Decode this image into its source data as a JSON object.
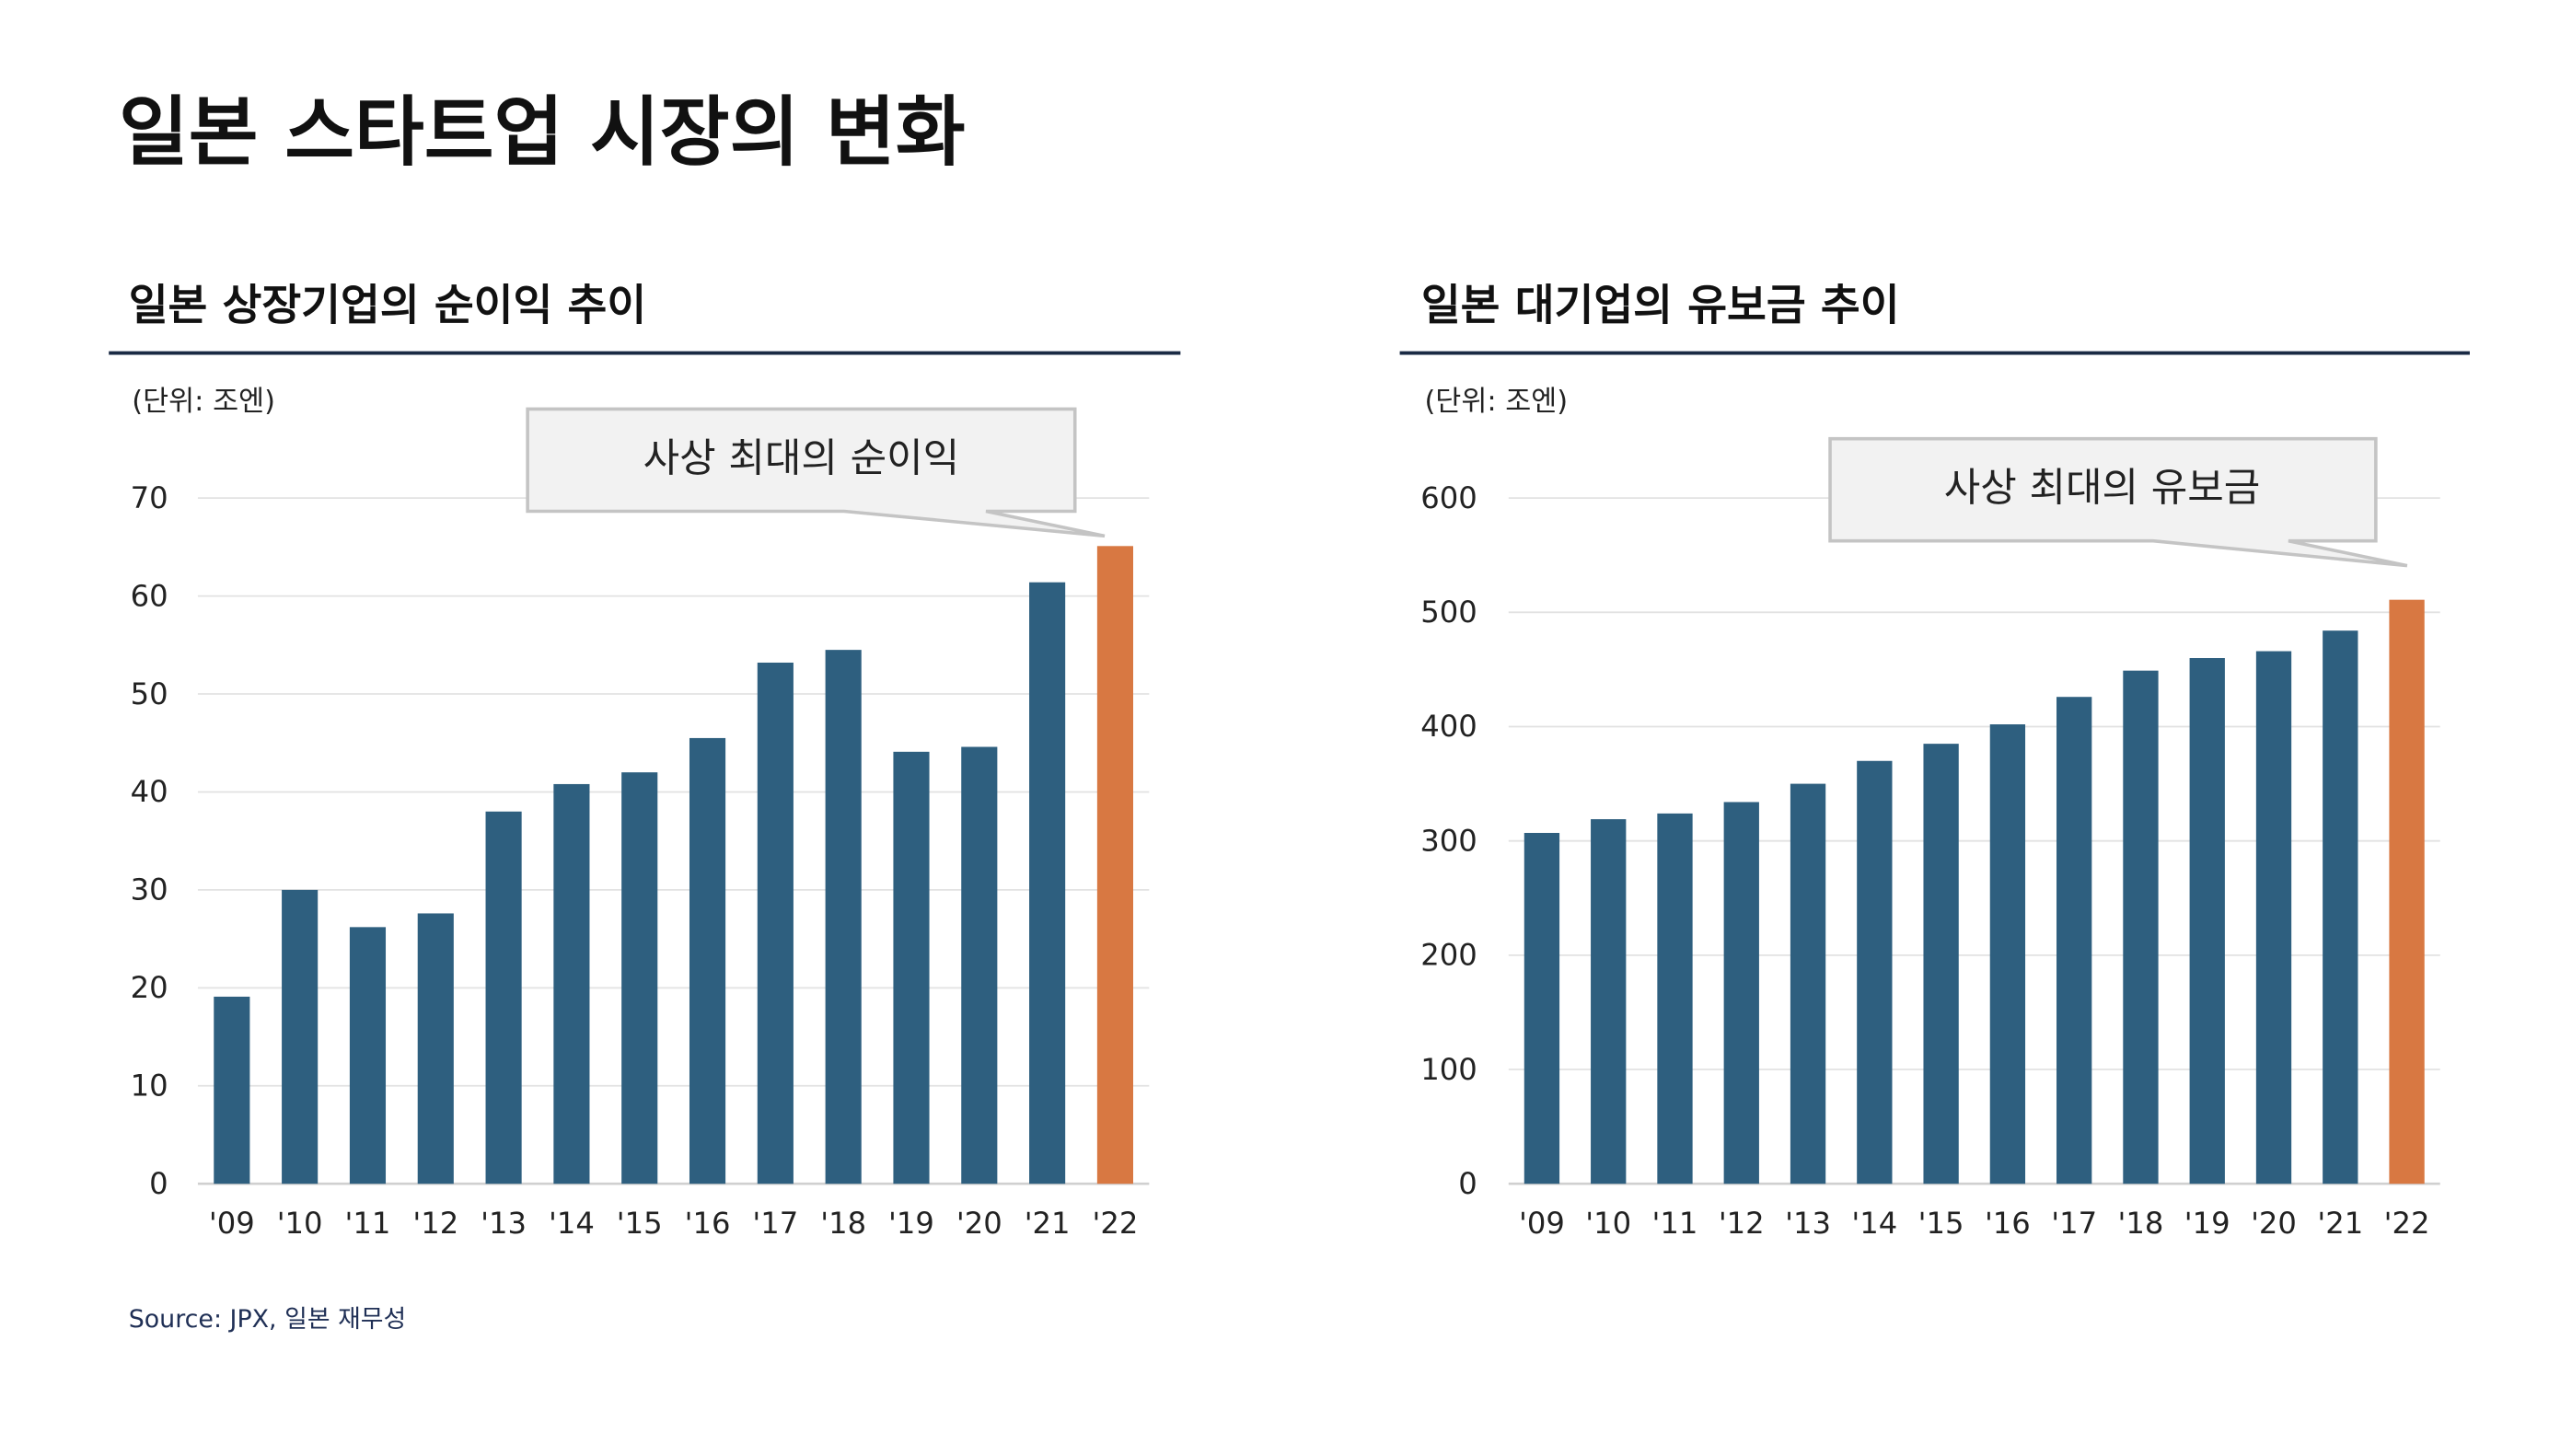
{
  "title": "일본 스타트업 시장의 변화",
  "source": "Source: JPX, 일본 재무성",
  "colors": {
    "bar": "#2e5f7f",
    "highlight": "#d87842",
    "rule": "#1a2a44",
    "grid": "#e2e2e2"
  },
  "chart_data": [
    {
      "type": "bar",
      "title": "일본 상장기업의 순이익 추이",
      "unit": "(단위: 조엔)",
      "annotation": "사상 최대의 순이익",
      "categories": [
        "'09",
        "'10",
        "'11",
        "'12",
        "'13",
        "'14",
        "'15",
        "'16",
        "'17",
        "'18",
        "'19",
        "'20",
        "'21",
        "'22"
      ],
      "values": [
        19.1,
        30.0,
        26.2,
        27.6,
        38.0,
        40.8,
        42.0,
        45.5,
        53.2,
        54.5,
        44.1,
        44.6,
        61.4,
        65.1
      ],
      "highlight_index": 13,
      "ylim": [
        0,
        70
      ],
      "yticks": [
        0,
        10,
        20,
        30,
        40,
        50,
        60,
        70
      ],
      "grid": true
    },
    {
      "type": "bar",
      "title": "일본 대기업의 유보금 추이",
      "unit": "(단위: 조엔)",
      "annotation": "사상 최대의 유보금",
      "categories": [
        "'09",
        "'10",
        "'11",
        "'12",
        "'13",
        "'14",
        "'15",
        "'16",
        "'17",
        "'18",
        "'19",
        "'20",
        "'21",
        "'22"
      ],
      "values": [
        307,
        319,
        324,
        334,
        350,
        370,
        385,
        402,
        426,
        449,
        460,
        466,
        484,
        511
      ],
      "highlight_index": 13,
      "ylim": [
        0,
        600
      ],
      "yticks": [
        0,
        100,
        200,
        300,
        400,
        500,
        600
      ],
      "grid": true
    }
  ]
}
